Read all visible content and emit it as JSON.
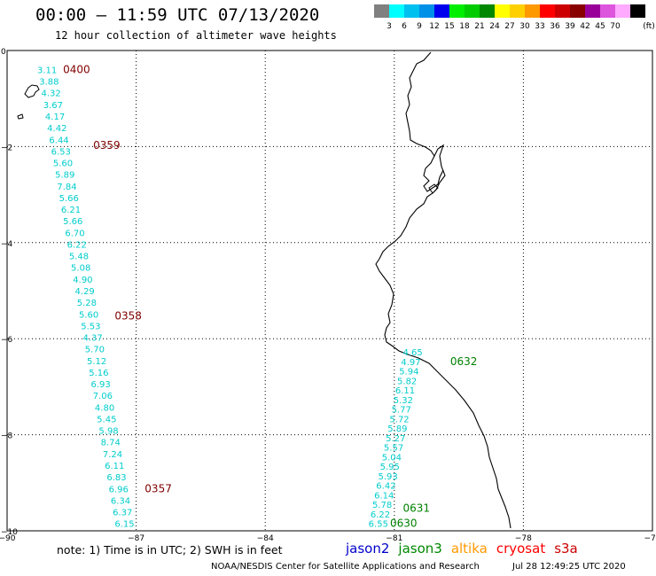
{
  "title": "00:00 — 11:59 UTC 07/13/2020",
  "subtitle": "12 hour collection of altimeter wave heights",
  "legend": {
    "unit": "(ft)",
    "bins": [
      {
        "label": "",
        "color": "#808080"
      },
      {
        "label": "3",
        "color": "#00ffff"
      },
      {
        "label": "6",
        "color": "#00c0f0"
      },
      {
        "label": "9",
        "color": "#0090e8"
      },
      {
        "label": "12",
        "color": "#0000ee"
      },
      {
        "label": "15",
        "color": "#00ee00"
      },
      {
        "label": "18",
        "color": "#00cc00"
      },
      {
        "label": "21",
        "color": "#008800"
      },
      {
        "label": "24",
        "color": "#ffff00"
      },
      {
        "label": "27",
        "color": "#ffd000"
      },
      {
        "label": "30",
        "color": "#ff9900"
      },
      {
        "label": "33",
        "color": "#ff0000"
      },
      {
        "label": "36",
        "color": "#cc0000"
      },
      {
        "label": "39",
        "color": "#880000"
      },
      {
        "label": "42",
        "color": "#990099"
      },
      {
        "label": "45",
        "color": "#dd55dd"
      },
      {
        "label": "70",
        "color": "#ffaaff"
      },
      {
        "label": "",
        "color": "#000000"
      }
    ]
  },
  "axes": {
    "lon_ticks": [
      {
        "label": "−90",
        "value": -90
      },
      {
        "label": "−87",
        "value": -87
      },
      {
        "label": "−84",
        "value": -84
      },
      {
        "label": "−81",
        "value": -81
      },
      {
        "label": "−78",
        "value": -78
      },
      {
        "label": "−75",
        "value": -75
      }
    ],
    "lat_ticks": [
      {
        "label": "0",
        "value": 0
      },
      {
        "label": "−2",
        "value": -2
      },
      {
        "label": "−4",
        "value": -4
      },
      {
        "label": "−6",
        "value": -6
      },
      {
        "label": "−8",
        "value": -8
      },
      {
        "label": "−10",
        "value": -10
      }
    ],
    "lon_range": [
      -90,
      -75
    ],
    "lat_range": [
      -10,
      0
    ]
  },
  "tracks": [
    {
      "satellite": "cryosat",
      "values": [
        "3.11",
        "3.88",
        "4.32",
        "3.67",
        "4.17",
        "4.42",
        "6.44",
        "6.53",
        "5.60",
        "5.89",
        "7.84",
        "5.66",
        "6.21",
        "5.66",
        "6.70",
        "6.22",
        "5.48",
        "5.08",
        "4.90",
        "4.29",
        "5.28",
        "5.60",
        "5.53",
        "4.37",
        "5.70",
        "5.12",
        "5.16",
        "6.93",
        "7.06",
        "4.80",
        "5.45",
        "5.98",
        "8.74",
        "7.24",
        "6.11",
        "6.83",
        "6.96",
        "6.34",
        "6.37",
        "6.15"
      ],
      "start": {
        "lon": -89.3,
        "lat": -0.47
      },
      "end": {
        "lon": -87.5,
        "lat": -9.92
      },
      "times": [
        {
          "label": "0400",
          "lon": -88.7,
          "lat": -0.47
        },
        {
          "label": "0359",
          "lon": -88.0,
          "lat": -2.05
        },
        {
          "label": "0358",
          "lon": -87.5,
          "lat": -5.6
        },
        {
          "label": "0357",
          "lon": -86.8,
          "lat": -9.2
        }
      ],
      "color": "#800000"
    },
    {
      "satellite": "jason3",
      "values": [
        "4.65",
        "4.97",
        "5.94",
        "5.82",
        "6.11",
        "5.32",
        "5.77",
        "5.72",
        "5.89",
        "5.27",
        "5.57",
        "5.04",
        "5.95",
        "5.93",
        "6.42",
        "6.14",
        "5.78",
        "6.22",
        "6.55"
      ],
      "start": {
        "lon": -80.8,
        "lat": -6.35
      },
      "end": {
        "lon": -81.6,
        "lat": -9.92
      },
      "times": [
        {
          "label": "0632",
          "lon": -79.7,
          "lat": -6.55
        },
        {
          "label": "0631",
          "lon": -80.8,
          "lat": -9.6
        },
        {
          "label": "0630",
          "lon": -81.1,
          "lat": -9.92
        }
      ],
      "color": "#008000"
    }
  ],
  "note": "note: 1) Time is in UTC; 2) SWH is in feet",
  "satellites": [
    {
      "name": "jason2",
      "color": "#0000cc"
    },
    {
      "name": "jason3",
      "color": "#008800"
    },
    {
      "name": "altika",
      "color": "#ff9900"
    },
    {
      "name": "cryosat",
      "color": "#ff0000"
    },
    {
      "name": "s3a",
      "color": "#cc0000"
    }
  ],
  "footer": "NOAA/NESDIS Center for Satellite Applications and Research",
  "timestamp": "Jul 28 12:49:25 UTC 2020"
}
